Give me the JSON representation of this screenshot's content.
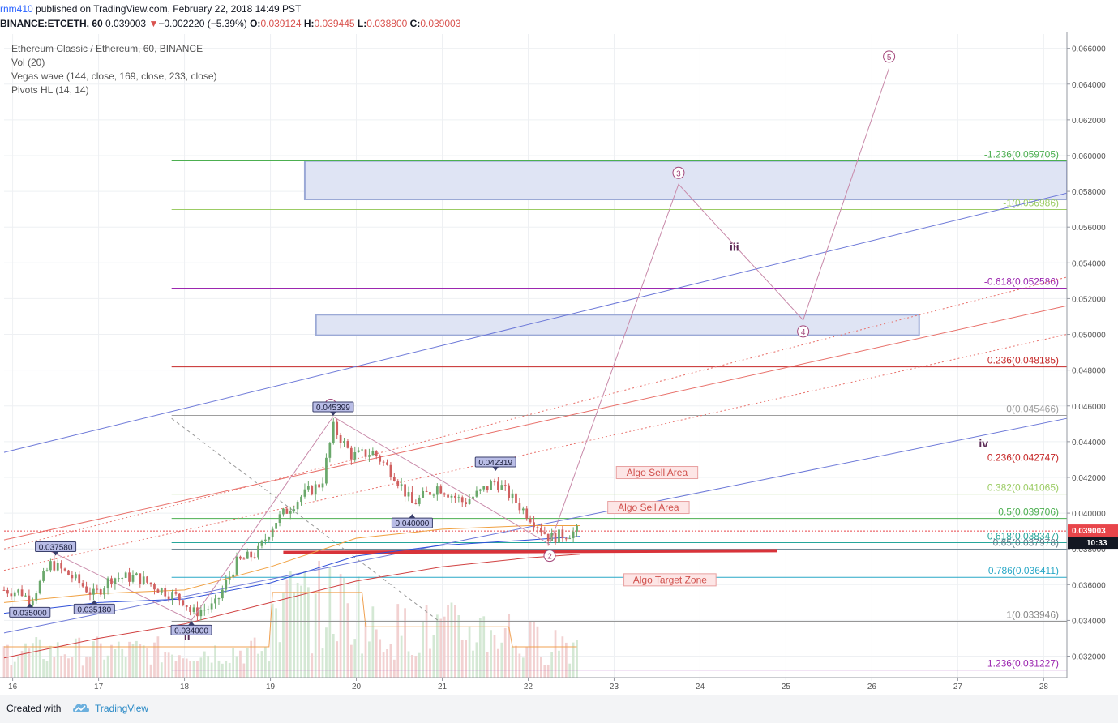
{
  "header": {
    "user": "rnm410",
    "published_text": " published on TradingView.com, February 22, 2018 14:49 PST",
    "symbol": "BINANCE:ETCETH, 60",
    "price": "0.039003",
    "change_arrow": "▼",
    "change": "−0.002220 (−5.39%)",
    "o_label": "O:",
    "o_value": "0.039124",
    "h_label": "H:",
    "h_value": "0.039445",
    "l_label": "L:",
    "l_value": "0.038800",
    "c_label": "C:",
    "c_value": "0.039003"
  },
  "legend": {
    "title": "Ethereum Classic / Ethereum, 60, BINANCE",
    "vol": "Vol (20)",
    "vegas": "Vegas wave (144, close, 169, close, 233, close)",
    "pivots": "Pivots HL (14, 14)"
  },
  "colors": {
    "up": "#6aa86b",
    "down": "#d06060",
    "zone_fill": "#dfe4f4",
    "zone_border": "#9ba9d6",
    "blue_channel": "#6d79d8",
    "red_channel": "#e8706a",
    "wave_path": "#c889a9",
    "algo_bg": "#fde6e6",
    "algo_border": "#e8a0a0",
    "algo_text": "#d0504c",
    "price_tag": "#e8454a",
    "time_tag": "#131722"
  },
  "chart_data": {
    "type": "candlestick",
    "x_axis": {
      "ticks": [
        "16",
        "17",
        "18",
        "19",
        "20",
        "21",
        "22",
        "23",
        "24",
        "25",
        "26",
        "27",
        "28"
      ],
      "unit": "day (Feb 2018)",
      "range": [
        15.9,
        28.27
      ]
    },
    "y_axis": {
      "ticks": [
        "0.032000",
        "0.034000",
        "0.036000",
        "0.038000",
        "0.040000",
        "0.042000",
        "0.044000",
        "0.046000",
        "0.048000",
        "0.050000",
        "0.052000",
        "0.054000",
        "0.056000",
        "0.058000",
        "0.060000",
        "0.062000",
        "0.064000",
        "0.066000"
      ],
      "range": [
        0.0308,
        0.0668
      ]
    },
    "price_tag": "0.039003",
    "time_tag": "10:33",
    "fib_levels": [
      {
        "label": "-1.236(0.059705)",
        "value": 0.059705,
        "color": "#4caf50"
      },
      {
        "label": "-1(0.056986)",
        "value": 0.056986,
        "color": "#9ccc65"
      },
      {
        "label": "-0.618(0.052586)",
        "value": 0.052586,
        "color": "#9c27b0"
      },
      {
        "label": "-0.236(0.048185)",
        "value": 0.048185,
        "color": "#c62828"
      },
      {
        "label": "0(0.045466)",
        "value": 0.045466,
        "color": "#9e9e9e"
      },
      {
        "label": "0.236(0.042747)",
        "value": 0.042747,
        "color": "#c62828"
      },
      {
        "label": "0.382(0.041065)",
        "value": 0.041065,
        "color": "#9ccc65"
      },
      {
        "label": "0.5(0.039706)",
        "value": 0.039706,
        "color": "#4caf50"
      },
      {
        "label": "0.618(0.038347)",
        "value": 0.038347,
        "color": "#26a69a"
      },
      {
        "label": "0.65(0.037978)",
        "value": 0.037978,
        "color": "#607d8b"
      },
      {
        "label": "0.786(0.036411)",
        "value": 0.036411,
        "color": "#29a8c7"
      },
      {
        "label": "1(0.033946)",
        "value": 0.033946,
        "color": "#888888"
      },
      {
        "label": "1.236(0.031227)",
        "value": 0.031227,
        "color": "#9c27b0"
      }
    ],
    "pivot_labels": [
      {
        "text": "0.037580",
        "day": 16.5,
        "value": 0.03758,
        "kind": "high"
      },
      {
        "text": "0.035000",
        "day": 16.2,
        "value": 0.035,
        "kind": "low"
      },
      {
        "text": "0.035180",
        "day": 16.95,
        "value": 0.03518,
        "kind": "low"
      },
      {
        "text": "0.034000",
        "day": 18.08,
        "value": 0.034,
        "kind": "low"
      },
      {
        "text": "0.045399",
        "day": 19.73,
        "value": 0.045399,
        "kind": "high"
      },
      {
        "text": "0.040000",
        "day": 20.65,
        "value": 0.04,
        "kind": "low"
      },
      {
        "text": "0.042319",
        "day": 21.62,
        "value": 0.042319,
        "kind": "high"
      }
    ],
    "wave_points": [
      {
        "label": "1",
        "day": 19.7,
        "value": 0.04542
      },
      {
        "label": "2",
        "day": 22.25,
        "value": 0.03825
      },
      {
        "label": "3",
        "day": 23.75,
        "value": 0.0584
      },
      {
        "label": "4",
        "day": 25.2,
        "value": 0.0508
      },
      {
        "label": "5",
        "day": 26.2,
        "value": 0.0649
      }
    ],
    "wave_labels": [
      {
        "text": "ii",
        "day": 18.03,
        "value": 0.03288
      },
      {
        "text": "iii",
        "day": 24.4,
        "value": 0.05467
      },
      {
        "text": "iv",
        "day": 27.3,
        "value": 0.04367
      }
    ],
    "algo_labels": [
      {
        "text": "Algo Sell Area",
        "day": 23.5,
        "value": 0.04227
      },
      {
        "text": "Algo Sell Area",
        "day": 23.4,
        "value": 0.04032
      },
      {
        "text": "Algo Target Zone",
        "day": 23.65,
        "value": 0.03627
      }
    ],
    "zones": [
      {
        "day_start": 19.4,
        "day_end": 28.27,
        "value_low": 0.05755,
        "value_high": 0.0597
      },
      {
        "day_start": 19.53,
        "day_end": 26.55,
        "value_low": 0.04995,
        "value_high": 0.0511
      }
    ],
    "close_samples": [
      {
        "day": 15.9,
        "value": 0.0357
      },
      {
        "day": 16.1,
        "value": 0.0356
      },
      {
        "day": 16.2,
        "value": 0.0351
      },
      {
        "day": 16.45,
        "value": 0.0372
      },
      {
        "day": 16.7,
        "value": 0.0364
      },
      {
        "day": 16.95,
        "value": 0.0354
      },
      {
        "day": 17.15,
        "value": 0.0364
      },
      {
        "day": 17.45,
        "value": 0.0364
      },
      {
        "day": 17.7,
        "value": 0.0358
      },
      {
        "day": 18.0,
        "value": 0.0351
      },
      {
        "day": 18.08,
        "value": 0.0344
      },
      {
        "day": 18.35,
        "value": 0.0348
      },
      {
        "day": 18.6,
        "value": 0.0372
      },
      {
        "day": 18.85,
        "value": 0.0378
      },
      {
        "day": 19.05,
        "value": 0.0395
      },
      {
        "day": 19.35,
        "value": 0.0409
      },
      {
        "day": 19.6,
        "value": 0.0417
      },
      {
        "day": 19.73,
        "value": 0.0448
      },
      {
        "day": 19.95,
        "value": 0.0432
      },
      {
        "day": 20.2,
        "value": 0.0434
      },
      {
        "day": 20.45,
        "value": 0.0421
      },
      {
        "day": 20.65,
        "value": 0.0405
      },
      {
        "day": 20.95,
        "value": 0.0415
      },
      {
        "day": 21.25,
        "value": 0.0406
      },
      {
        "day": 21.45,
        "value": 0.0412
      },
      {
        "day": 21.62,
        "value": 0.0418
      },
      {
        "day": 21.9,
        "value": 0.0404
      },
      {
        "day": 22.1,
        "value": 0.0394
      },
      {
        "day": 22.25,
        "value": 0.0386
      },
      {
        "day": 22.5,
        "value": 0.0389
      },
      {
        "day": 22.6,
        "value": 0.039003
      }
    ],
    "vol_range": [
      0,
      10
    ]
  }
}
